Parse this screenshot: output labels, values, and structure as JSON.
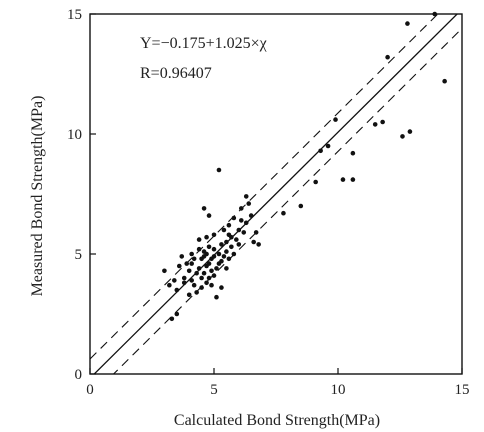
{
  "chart_data": {
    "type": "scatter",
    "title": "",
    "xlabel": "Calculated Bond Strength(MPa)",
    "ylabel": "Measured Bond Strength(MPa)",
    "xlim": [
      0,
      15
    ],
    "ylim": [
      0,
      15
    ],
    "xticks": [
      "0",
      "5",
      "10",
      "15"
    ],
    "yticks": [
      "0",
      "5",
      "10",
      "15"
    ],
    "grid": false,
    "annotations": [
      "Y=−0.175+1.025×χ",
      "R=0.96407"
    ],
    "regression": {
      "intercept": -0.175,
      "slope": 1.025
    },
    "confidence_offset": 0.8,
    "points": [
      [
        3.0,
        4.3
      ],
      [
        3.2,
        3.7
      ],
      [
        3.3,
        2.3
      ],
      [
        3.5,
        2.5
      ],
      [
        3.5,
        3.5
      ],
      [
        3.6,
        4.5
      ],
      [
        3.8,
        3.8
      ],
      [
        3.8,
        4.0
      ],
      [
        3.9,
        4.6
      ],
      [
        4.0,
        3.3
      ],
      [
        4.0,
        4.3
      ],
      [
        4.1,
        3.9
      ],
      [
        4.1,
        4.6
      ],
      [
        4.2,
        3.7
      ],
      [
        4.3,
        3.4
      ],
      [
        4.3,
        4.2
      ],
      [
        4.4,
        4.4
      ],
      [
        4.4,
        5.2
      ],
      [
        4.5,
        3.6
      ],
      [
        4.5,
        4.0
      ],
      [
        4.5,
        4.8
      ],
      [
        4.6,
        4.2
      ],
      [
        4.6,
        4.9
      ],
      [
        4.6,
        5.1
      ],
      [
        4.7,
        3.8
      ],
      [
        4.7,
        4.5
      ],
      [
        4.7,
        5.0
      ],
      [
        4.8,
        4.0
      ],
      [
        4.8,
        4.6
      ],
      [
        4.8,
        5.3
      ],
      [
        4.9,
        3.7
      ],
      [
        4.9,
        4.3
      ],
      [
        4.9,
        4.8
      ],
      [
        5.0,
        4.1
      ],
      [
        5.0,
        4.9
      ],
      [
        5.0,
        5.2
      ],
      [
        5.1,
        4.4
      ],
      [
        5.1,
        3.2
      ],
      [
        5.2,
        4.6
      ],
      [
        5.2,
        5.0
      ],
      [
        5.3,
        3.6
      ],
      [
        5.3,
        4.7
      ],
      [
        5.3,
        5.4
      ],
      [
        5.4,
        4.9
      ],
      [
        5.4,
        6.0
      ],
      [
        5.5,
        4.4
      ],
      [
        5.5,
        5.1
      ],
      [
        5.5,
        5.5
      ],
      [
        5.6,
        5.8
      ],
      [
        5.6,
        6.2
      ],
      [
        5.7,
        5.3
      ],
      [
        5.7,
        5.7
      ],
      [
        5.8,
        5.0
      ],
      [
        5.8,
        6.5
      ],
      [
        5.9,
        5.6
      ],
      [
        6.0,
        6.0
      ],
      [
        6.0,
        5.4
      ],
      [
        6.1,
        6.4
      ],
      [
        6.1,
        6.9
      ],
      [
        6.2,
        5.9
      ],
      [
        6.3,
        6.3
      ],
      [
        6.3,
        7.4
      ],
      [
        6.4,
        7.1
      ],
      [
        6.5,
        6.6
      ],
      [
        6.6,
        5.5
      ],
      [
        6.7,
        5.9
      ],
      [
        6.8,
        5.4
      ],
      [
        4.6,
        6.9
      ],
      [
        4.8,
        6.6
      ],
      [
        5.2,
        8.5
      ],
      [
        4.4,
        5.6
      ],
      [
        4.1,
        5.0
      ],
      [
        4.7,
        5.7
      ],
      [
        3.7,
        4.9
      ],
      [
        3.4,
        3.9
      ],
      [
        4.2,
        4.8
      ],
      [
        5.0,
        5.8
      ],
      [
        5.6,
        4.8
      ],
      [
        7.8,
        6.7
      ],
      [
        8.5,
        7.0
      ],
      [
        9.1,
        8.0
      ],
      [
        9.3,
        9.3
      ],
      [
        9.6,
        9.5
      ],
      [
        9.9,
        10.6
      ],
      [
        10.2,
        8.1
      ],
      [
        10.6,
        8.1
      ],
      [
        10.6,
        9.2
      ],
      [
        11.5,
        10.4
      ],
      [
        11.8,
        10.5
      ],
      [
        12.0,
        13.2
      ],
      [
        12.6,
        9.9
      ],
      [
        12.9,
        10.1
      ],
      [
        12.8,
        14.6
      ],
      [
        14.3,
        12.2
      ],
      [
        13.9,
        15.0
      ]
    ]
  }
}
